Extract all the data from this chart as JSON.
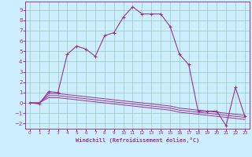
{
  "xlabel": "Windchill (Refroidissement éolien,°C)",
  "bg_color": "#cceeff",
  "line_color": "#993399",
  "grid_color": "#99ccbb",
  "xmin": -0.5,
  "xmax": 23.5,
  "ymin": -2.5,
  "ymax": 9.8,
  "yticks": [
    -2,
    -1,
    0,
    1,
    2,
    3,
    4,
    5,
    6,
    7,
    8,
    9
  ],
  "xticks": [
    0,
    1,
    2,
    3,
    4,
    5,
    6,
    7,
    8,
    9,
    10,
    11,
    12,
    13,
    14,
    15,
    16,
    17,
    18,
    19,
    20,
    21,
    22,
    23
  ],
  "main_line": {
    "x": [
      0,
      1,
      2,
      3,
      4,
      5,
      6,
      7,
      8,
      9,
      10,
      11,
      12,
      13,
      14,
      15,
      16,
      17,
      18,
      19,
      20,
      21,
      22,
      23
    ],
    "y": [
      0.0,
      -0.1,
      1.1,
      1.0,
      4.7,
      5.5,
      5.2,
      4.5,
      6.5,
      6.8,
      8.3,
      9.3,
      8.6,
      8.6,
      8.6,
      7.4,
      4.7,
      3.7,
      -0.8,
      -0.8,
      -0.8,
      -2.2,
      1.5,
      -1.3
    ]
  },
  "flat_lines": [
    {
      "x": [
        0,
        1,
        2,
        3,
        4,
        5,
        6,
        7,
        8,
        9,
        10,
        11,
        12,
        13,
        14,
        15,
        16,
        17,
        18,
        19,
        20,
        21,
        22,
        23
      ],
      "y": [
        0.0,
        0.0,
        0.9,
        0.9,
        0.8,
        0.7,
        0.6,
        0.5,
        0.4,
        0.3,
        0.2,
        0.1,
        0.0,
        -0.1,
        -0.2,
        -0.3,
        -0.5,
        -0.6,
        -0.7,
        -0.8,
        -0.9,
        -1.0,
        -1.1,
        -1.2
      ]
    },
    {
      "x": [
        0,
        1,
        2,
        3,
        4,
        5,
        6,
        7,
        8,
        9,
        10,
        11,
        12,
        13,
        14,
        15,
        16,
        17,
        18,
        19,
        20,
        21,
        22,
        23
      ],
      "y": [
        0.0,
        0.0,
        0.7,
        0.7,
        0.6,
        0.5,
        0.4,
        0.3,
        0.2,
        0.1,
        0.0,
        -0.1,
        -0.2,
        -0.3,
        -0.4,
        -0.5,
        -0.7,
        -0.8,
        -0.9,
        -1.0,
        -1.1,
        -1.2,
        -1.3,
        -1.4
      ]
    },
    {
      "x": [
        0,
        1,
        2,
        3,
        4,
        5,
        6,
        7,
        8,
        9,
        10,
        11,
        12,
        13,
        14,
        15,
        16,
        17,
        18,
        19,
        20,
        21,
        22,
        23
      ],
      "y": [
        0.0,
        0.0,
        0.5,
        0.5,
        0.4,
        0.3,
        0.2,
        0.1,
        0.0,
        -0.1,
        -0.2,
        -0.3,
        -0.4,
        -0.5,
        -0.6,
        -0.7,
        -0.9,
        -1.0,
        -1.1,
        -1.2,
        -1.3,
        -1.4,
        -1.5,
        -1.6
      ]
    }
  ]
}
